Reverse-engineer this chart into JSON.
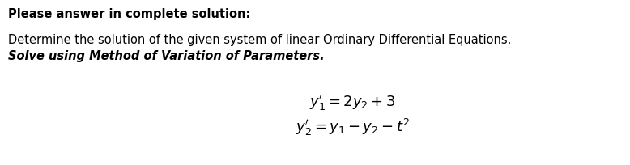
{
  "line1": "Please answer in complete solution:",
  "line2": "Determine the solution of the given system of linear Ordinary Differential Equations.",
  "line3": "Solve using Method of Variation of Parameters.",
  "eq1": "$y_1' = 2y_2 + 3$",
  "eq2": "$y_2' = y_1 - y_2 - t^2$",
  "bg_color": "#ffffff",
  "text_color": "#000000",
  "line1_fontsize": 10.5,
  "line2_fontsize": 10.5,
  "line3_fontsize": 10.5,
  "eq_fontsize": 13,
  "fig_width": 7.78,
  "fig_height": 2.05
}
